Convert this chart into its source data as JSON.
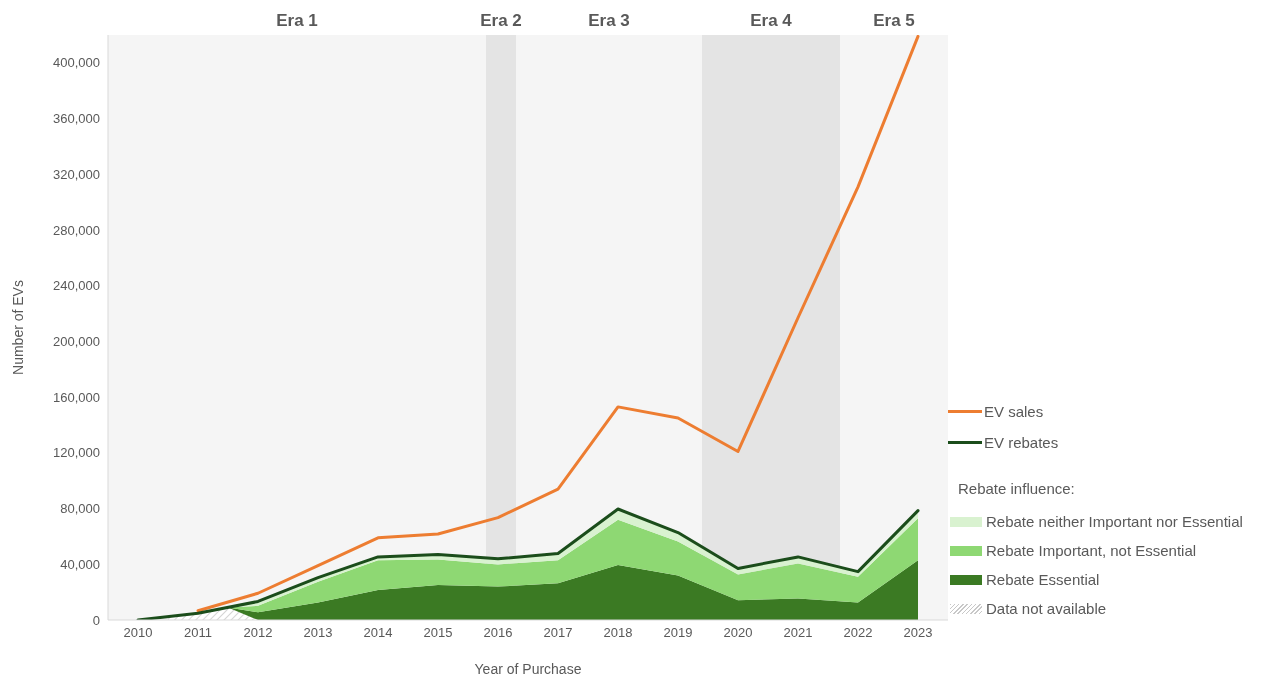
{
  "chart_data": {
    "type": "line",
    "xlabel": "Year of Purchase",
    "ylabel": "Number of EVs",
    "legend_title": "Rebate influence:",
    "x": [
      2010,
      2011,
      2012,
      2013,
      2014,
      2015,
      2016,
      2017,
      2018,
      2019,
      2020,
      2021,
      2022,
      2023
    ],
    "xlim": [
      2009.5,
      2023.5
    ],
    "xticks": [
      2010,
      2011,
      2012,
      2013,
      2014,
      2015,
      2016,
      2017,
      2018,
      2019,
      2020,
      2021,
      2022,
      2023
    ],
    "ylim": [
      0,
      420000
    ],
    "yticks": [
      {
        "value": 0,
        "label": "0"
      },
      {
        "value": 40000,
        "label": "40,000"
      },
      {
        "value": 80000,
        "label": "80,000"
      },
      {
        "value": 120000,
        "label": "120,000"
      },
      {
        "value": 160000,
        "label": "160,000"
      },
      {
        "value": 200000,
        "label": "200,000"
      },
      {
        "value": 240000,
        "label": "240,000"
      },
      {
        "value": 280000,
        "label": "280,000"
      },
      {
        "value": 320000,
        "label": "320,000"
      },
      {
        "value": 360000,
        "label": "360,000"
      },
      {
        "value": 400000,
        "label": "400,000"
      }
    ],
    "stacked": true,
    "grid": false,
    "legend": "right",
    "series": [
      {
        "name": "Data not available",
        "type": "area",
        "color": "#c8c8c8",
        "x": [
          2010.5,
          2011,
          2011.5,
          2012,
          2013,
          2014,
          2015,
          2016,
          2017,
          2018,
          2019,
          2020,
          2021,
          2022,
          2023
        ],
        "values": [
          2400,
          4800,
          9000,
          0,
          0,
          0,
          0,
          0,
          0,
          0,
          0,
          0,
          0,
          0,
          0
        ]
      },
      {
        "name": "Rebate Essential",
        "type": "area",
        "color": "#3b7a23",
        "x": [
          2010.5,
          2011,
          2011.5,
          2012,
          2013,
          2014,
          2015,
          2016,
          2017,
          2018,
          2019,
          2020,
          2021,
          2022,
          2023
        ],
        "values": [
          0,
          0,
          0,
          5500,
          12600,
          21600,
          25100,
          24000,
          26300,
          39400,
          32000,
          14200,
          15400,
          12500,
          42900
        ]
      },
      {
        "name": "Rebate Important, not Essential",
        "type": "area",
        "color": "#8ed873",
        "x": [
          2010.5,
          2011,
          2011.5,
          2012,
          2013,
          2014,
          2015,
          2016,
          2017,
          2018,
          2019,
          2020,
          2021,
          2022,
          2023
        ],
        "values": [
          0,
          0,
          0,
          4700,
          14900,
          21300,
          18300,
          15900,
          16600,
          32500,
          24400,
          18500,
          25200,
          18600,
          30200
        ]
      },
      {
        "name": "Rebate neither Important nor Essential",
        "type": "area",
        "color": "#d9f2d0",
        "x": [
          2010.5,
          2011,
          2011.5,
          2012,
          2013,
          2014,
          2015,
          2016,
          2017,
          2018,
          2019,
          2020,
          2021,
          2022,
          2023
        ],
        "values": [
          0,
          0,
          0,
          3100,
          2900,
          2400,
          3600,
          4000,
          4800,
          7800,
          6400,
          4300,
          4700,
          3600,
          5400
        ]
      },
      {
        "name": "EV sales",
        "color": "#ed7d31",
        "values": [
          null,
          6600,
          19200,
          39000,
          59000,
          61700,
          73500,
          93900,
          153000,
          145000,
          121000,
          217000,
          311000,
          419000
        ]
      },
      {
        "name": "EV rebates",
        "color": "#1b4d1b",
        "values": [
          0,
          4800,
          13300,
          30400,
          45300,
          47000,
          43900,
          47700,
          79700,
          62800,
          37000,
          45300,
          34700,
          78500
        ]
      }
    ],
    "bands": [
      {
        "axis": "x",
        "from": 2009.5,
        "to": 2015.8,
        "label": "Era 1",
        "color": "#f5f5f5"
      },
      {
        "axis": "x",
        "from": 2015.8,
        "to": 2016.3,
        "label": "Era 2",
        "color": "#e4e4e4"
      },
      {
        "axis": "x",
        "from": 2016.3,
        "to": 2019.4,
        "label": "Era 3",
        "color": "#f5f5f5"
      },
      {
        "axis": "x",
        "from": 2019.4,
        "to": 2021.7,
        "label": "Era 4",
        "color": "#e4e4e4"
      },
      {
        "axis": "x",
        "from": 2021.7,
        "to": 2023.5,
        "label": "Era 5",
        "color": "#f5f5f5"
      }
    ]
  }
}
